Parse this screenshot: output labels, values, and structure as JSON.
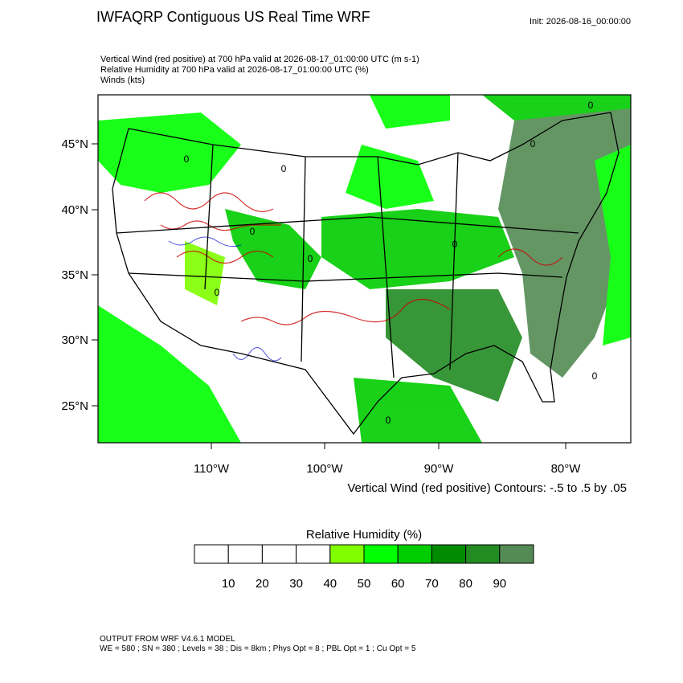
{
  "header": {
    "title": "IWFAQRP Contiguous US Real Time WRF",
    "init": "Init: 2026-08-16_00:00:00",
    "lines": [
      "Vertical Wind (red positive) at 700 hPa valid at 2026-08-17_01:00:00 UTC   (m s-1)",
      "Relative Humidity at 700 hPa valid at 2026-08-17_01:00:00 UTC   (%)",
      "Winds   (kts)"
    ]
  },
  "map": {
    "lat_labels": [
      "45°N",
      "40°N",
      "35°N",
      "30°N",
      "25°N"
    ],
    "lon_labels": [
      "110°W",
      "100°W",
      "90°W",
      "80°W"
    ],
    "contour_labels": [
      "0",
      "0",
      "0",
      "0",
      "0",
      "0",
      "0",
      "0",
      "0",
      "0"
    ],
    "contour_note": "Vertical Wind (red positive) Contours: -.5 to .5 by .05"
  },
  "colorbar": {
    "title": "Relative Humidity  (%)",
    "colors": [
      "#ffffff",
      "#ffffff",
      "#ffffff",
      "#ffffff",
      "#7fff00",
      "#00ff00",
      "#00cd00",
      "#008b00",
      "#228b22",
      "#548b54"
    ],
    "labels": [
      10,
      20,
      30,
      40,
      50,
      60,
      70,
      80,
      90
    ]
  },
  "footer": [
    "OUTPUT FROM WRF V4.6.1 MODEL",
    "WE = 580 ; SN = 380 ; Levels = 38 ; Dis = 8km ; Phys Opt = 8 ; PBL Opt = 1 ; Cu Opt = 5"
  ]
}
